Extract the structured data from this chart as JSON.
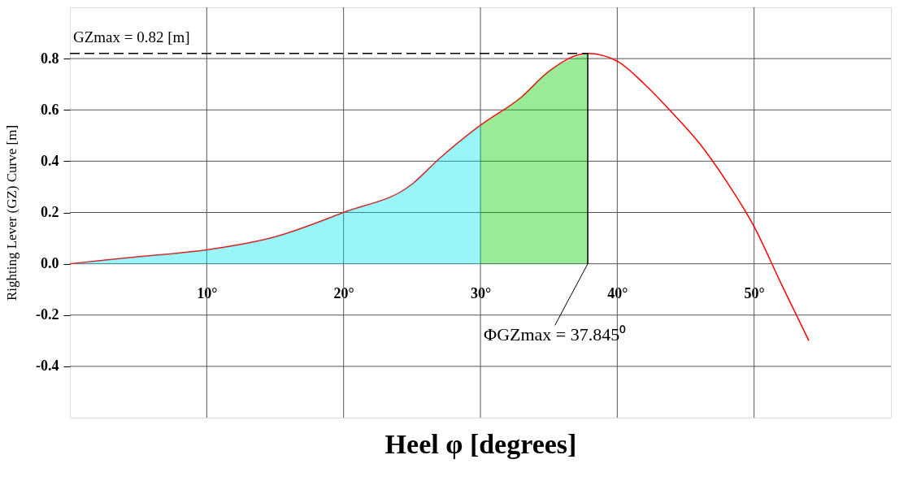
{
  "chart_data": {
    "type": "line",
    "xlabel": "Heel φ  [degrees]",
    "ylabel": "Righting Lever (GZ) Curve [m]",
    "x": [
      0,
      5,
      10,
      15,
      20,
      25,
      27,
      30,
      33,
      35,
      37.845,
      40,
      42,
      44,
      46,
      48,
      50,
      52,
      54
    ],
    "series": [
      {
        "color": "#ff0000",
        "values": [
          0,
          0.027,
          0.054,
          0.105,
          0.2,
          0.31,
          0.41,
          0.54,
          0.65,
          0.75,
          0.82,
          0.79,
          0.7,
          0.59,
          0.47,
          0.32,
          0.145,
          -0.08,
          -0.3
        ]
      },
      {
        "type": "area",
        "color": "#00e5ee",
        "x": [
          0,
          5,
          10,
          15,
          20,
          25,
          27,
          30
        ],
        "values": [
          0,
          0.027,
          0.054,
          0.105,
          0.2,
          0.31,
          0.41,
          0.54
        ]
      },
      {
        "type": "area",
        "color": "#00cc00",
        "x": [
          30,
          33,
          35,
          37.845
        ],
        "values": [
          0.54,
          0.65,
          0.75,
          0.82
        ]
      }
    ],
    "xlim": [
      0,
      60
    ],
    "ylim": [
      -0.6,
      1.0
    ],
    "xticks": [
      {
        "value": 10,
        "label": "10°"
      },
      {
        "value": 20,
        "label": "20°"
      },
      {
        "value": 30,
        "label": "30°"
      },
      {
        "value": 40,
        "label": "40°"
      },
      {
        "value": 50,
        "label": "50°"
      }
    ],
    "yticks": [
      -0.4,
      -0.2,
      {
        "value": 0,
        "label": "0.0"
      },
      0.2,
      0.4,
      0.6,
      0.8
    ],
    "grid": true,
    "marker": "none",
    "line_style": "solid",
    "ref_lines": [
      {
        "axis": "y",
        "value": 0.82,
        "label": "GZmax = 0.82 [m]",
        "line_style": "dashed",
        "color": "#000000"
      },
      {
        "axis": "x",
        "value": 37.845,
        "label": "ΦGZmax = 37.845⁰",
        "line_style": "solid",
        "color": "#000000"
      }
    ]
  }
}
